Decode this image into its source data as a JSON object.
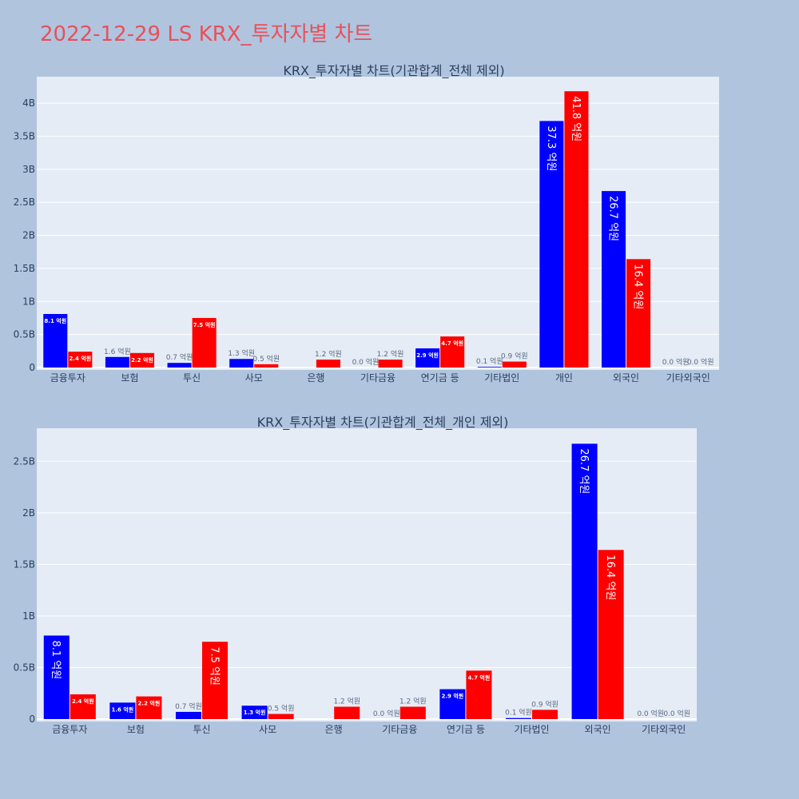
{
  "page": {
    "title": "2022-12-29 LS KRX_투자자별 차트"
  },
  "colors": {
    "background": "#b0c4de",
    "plot_background": "#e5ecf6",
    "title": "#e8505b",
    "series_buy": "#0000ff",
    "series_sell": "#ff0000",
    "label_outside": "#5a6a80",
    "label_inside": "#ffffff"
  },
  "chart_data": [
    {
      "type": "bar",
      "title": "KRX_투자자별 차트(기관합계_전체 제외)",
      "categories": [
        "금융투자",
        "보험",
        "투신",
        "사모",
        "은행",
        "기타금융",
        "연기금 등",
        "기타법인",
        "개인",
        "외국인",
        "기타외국인"
      ],
      "series": [
        {
          "color": "#0000ff",
          "values": [
            0.81,
            0.16,
            0.07,
            0.13,
            0.0,
            0.0,
            0.29,
            0.01,
            3.73,
            2.67,
            0.0
          ],
          "labels": [
            "8.1 억원",
            "1.6 억원",
            "0.7 억원",
            "1.3 억원",
            "",
            "0.0 억원",
            "2.9 억원",
            "0.1 억원",
            "37.3 억원",
            "26.7 억원",
            "0.0 억원"
          ]
        },
        {
          "color": "#ff0000",
          "values": [
            0.24,
            0.22,
            0.75,
            0.05,
            0.12,
            0.12,
            0.47,
            0.09,
            4.18,
            1.64,
            0.0
          ],
          "labels": [
            "2.4 억원",
            "2.2 억원",
            "7.5 억원",
            "0.5 억원",
            "1.2 억원",
            "1.2 억원",
            "4.7 억원",
            "0.9 억원",
            "41.8 억원",
            "16.4 억원",
            "0.0 억원"
          ]
        }
      ],
      "ylim": [
        0,
        4.4
      ],
      "yticks": [
        0,
        0.5,
        1,
        1.5,
        2,
        2.5,
        3,
        3.5,
        4
      ],
      "ytick_labels": [
        "0",
        "0.5B",
        "1B",
        "1.5B",
        "2B",
        "2.5B",
        "3B",
        "3.5B",
        "4B"
      ],
      "grid": true
    },
    {
      "type": "bar",
      "title": "KRX_투자자별 차트(기관합계_전체_개인 제외)",
      "categories": [
        "금융투자",
        "보험",
        "투신",
        "사모",
        "은행",
        "기타금융",
        "연기금 등",
        "기타법인",
        "외국인",
        "기타외국인"
      ],
      "series": [
        {
          "color": "#0000ff",
          "values": [
            0.81,
            0.16,
            0.07,
            0.13,
            0.0,
            0.0,
            0.29,
            0.01,
            2.67,
            0.0
          ],
          "labels": [
            "8.1 억원",
            "1.6 억원",
            "0.7 억원",
            "1.3 억원",
            "",
            "0.0 억원",
            "2.9 억원",
            "0.1 억원",
            "26.7 억원",
            "0.0 억원"
          ]
        },
        {
          "color": "#ff0000",
          "values": [
            0.24,
            0.22,
            0.75,
            0.05,
            0.12,
            0.12,
            0.47,
            0.09,
            1.64,
            0.0
          ],
          "labels": [
            "2.4 억원",
            "2.2 억원",
            "7.5 억원",
            "0.5 억원",
            "1.2 억원",
            "1.2 억원",
            "4.7 억원",
            "0.9 억원",
            "16.4 억원",
            "0.0 억원"
          ]
        }
      ],
      "ylim": [
        0,
        2.82
      ],
      "yticks": [
        0,
        0.5,
        1,
        1.5,
        2,
        2.5
      ],
      "ytick_labels": [
        "0",
        "0.5B",
        "1B",
        "1.5B",
        "2B",
        "2.5B"
      ],
      "grid": true
    }
  ]
}
